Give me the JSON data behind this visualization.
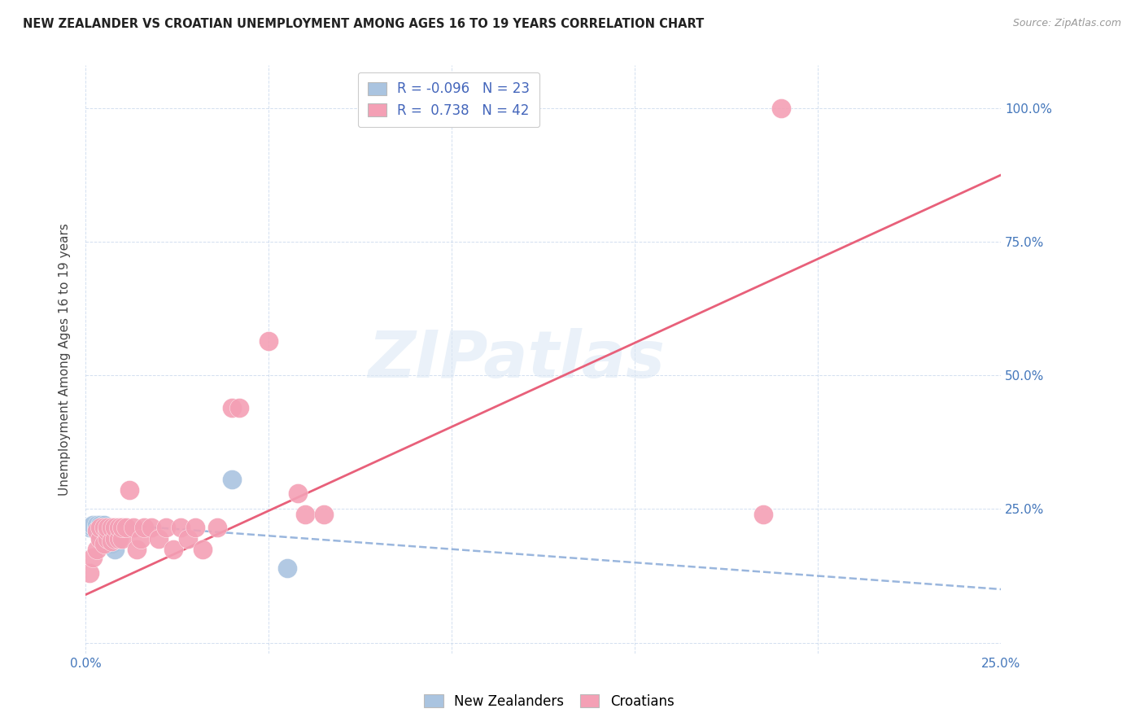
{
  "title": "NEW ZEALANDER VS CROATIAN UNEMPLOYMENT AMONG AGES 16 TO 19 YEARS CORRELATION CHART",
  "source": "Source: ZipAtlas.com",
  "ylabel": "Unemployment Among Ages 16 to 19 years",
  "x_min": 0.0,
  "x_max": 0.25,
  "y_min": -0.02,
  "y_max": 1.08,
  "x_ticks": [
    0.0,
    0.05,
    0.1,
    0.15,
    0.2,
    0.25
  ],
  "x_tick_labels": [
    "0.0%",
    "",
    "",
    "",
    "",
    "25.0%"
  ],
  "y_ticks": [
    0.0,
    0.25,
    0.5,
    0.75,
    1.0
  ],
  "y_tick_labels": [
    "",
    "25.0%",
    "50.0%",
    "75.0%",
    "100.0%"
  ],
  "nz_color": "#aac4e0",
  "cr_color": "#f4a0b5",
  "nz_line_color": "#88aad8",
  "cr_line_color": "#e8607a",
  "nz_R": -0.096,
  "nz_N": 23,
  "cr_R": 0.738,
  "cr_N": 42,
  "watermark": "ZIPatlas",
  "legend_label_nz": "New Zealanders",
  "legend_label_cr": "Croatians",
  "nz_line_x0": 0.0,
  "nz_line_y0": 0.225,
  "nz_line_x1": 0.25,
  "nz_line_y1": 0.1,
  "cr_line_x0": 0.0,
  "cr_line_y0": 0.09,
  "cr_line_x1": 0.25,
  "cr_line_y1": 0.875,
  "nz_points_x": [
    0.001,
    0.002,
    0.002,
    0.003,
    0.003,
    0.003,
    0.004,
    0.004,
    0.004,
    0.004,
    0.005,
    0.005,
    0.005,
    0.005,
    0.005,
    0.006,
    0.006,
    0.006,
    0.007,
    0.007,
    0.008,
    0.04,
    0.055
  ],
  "nz_points_y": [
    0.215,
    0.215,
    0.22,
    0.21,
    0.215,
    0.22,
    0.2,
    0.21,
    0.215,
    0.22,
    0.195,
    0.205,
    0.21,
    0.215,
    0.22,
    0.19,
    0.2,
    0.21,
    0.185,
    0.19,
    0.175,
    0.305,
    0.14
  ],
  "cr_points_x": [
    0.001,
    0.002,
    0.003,
    0.003,
    0.004,
    0.004,
    0.005,
    0.005,
    0.006,
    0.006,
    0.006,
    0.007,
    0.007,
    0.008,
    0.008,
    0.009,
    0.009,
    0.01,
    0.01,
    0.011,
    0.012,
    0.013,
    0.014,
    0.015,
    0.016,
    0.018,
    0.02,
    0.022,
    0.024,
    0.026,
    0.028,
    0.03,
    0.032,
    0.036,
    0.04,
    0.042,
    0.05,
    0.058,
    0.06,
    0.065,
    0.185,
    0.19
  ],
  "cr_points_y": [
    0.13,
    0.16,
    0.175,
    0.21,
    0.195,
    0.215,
    0.185,
    0.215,
    0.195,
    0.21,
    0.215,
    0.19,
    0.215,
    0.195,
    0.215,
    0.195,
    0.215,
    0.195,
    0.215,
    0.215,
    0.285,
    0.215,
    0.175,
    0.195,
    0.215,
    0.215,
    0.195,
    0.215,
    0.175,
    0.215,
    0.195,
    0.215,
    0.175,
    0.215,
    0.44,
    0.44,
    0.565,
    0.28,
    0.24,
    0.24,
    0.24,
    1.0
  ]
}
